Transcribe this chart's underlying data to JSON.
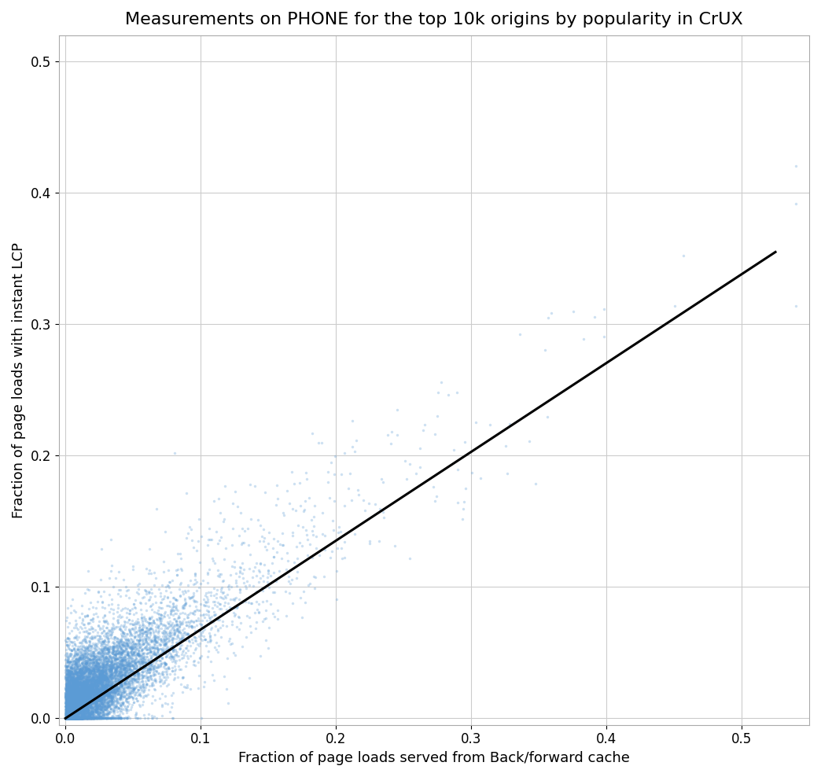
{
  "title": "Measurements on PHONE for the top 10k origins by popularity in CrUX",
  "xlabel": "Fraction of page loads served from Back/forward cache",
  "ylabel": "Fraction of page loads with instant LCP",
  "xlim": [
    -0.005,
    0.55
  ],
  "ylim": [
    -0.005,
    0.52
  ],
  "xticks": [
    0.0,
    0.1,
    0.2,
    0.3,
    0.4,
    0.5
  ],
  "yticks": [
    0.0,
    0.1,
    0.2,
    0.3,
    0.4,
    0.5
  ],
  "scatter_color": "#5b9bd5",
  "scatter_alpha": 0.3,
  "scatter_size": 6,
  "line_color": "black",
  "line_x": [
    0.0,
    0.525
  ],
  "line_y": [
    0.0,
    0.355
  ],
  "line_width": 2.2,
  "n_points": 10000,
  "seed": 99,
  "background_color": "white",
  "grid_color": "#cccccc",
  "title_fontsize": 16,
  "label_fontsize": 13
}
